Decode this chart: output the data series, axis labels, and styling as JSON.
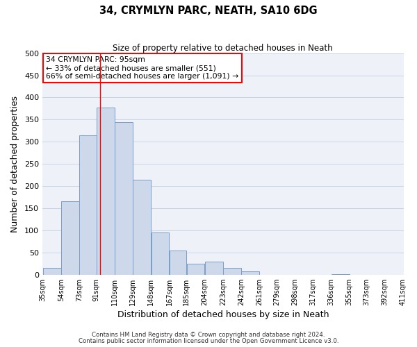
{
  "title": "34, CRYMLYN PARC, NEATH, SA10 6DG",
  "subtitle": "Size of property relative to detached houses in Neath",
  "xlabel": "Distribution of detached houses by size in Neath",
  "ylabel": "Number of detached properties",
  "bar_color": "#cdd9ea",
  "bar_edge_color": "#7a9ec8",
  "bar_edge_width": 0.7,
  "categories": [
    "35sqm",
    "54sqm",
    "73sqm",
    "91sqm",
    "110sqm",
    "129sqm",
    "148sqm",
    "167sqm",
    "185sqm",
    "204sqm",
    "223sqm",
    "242sqm",
    "261sqm",
    "279sqm",
    "298sqm",
    "317sqm",
    "336sqm",
    "355sqm",
    "373sqm",
    "392sqm",
    "411sqm"
  ],
  "bin_left_edges": [
    35,
    54,
    73,
    91,
    110,
    129,
    148,
    167,
    185,
    204,
    223,
    242,
    261,
    279,
    298,
    317,
    336,
    355,
    373,
    392
  ],
  "bin_widths": [
    19,
    19,
    18,
    19,
    19,
    19,
    19,
    18,
    19,
    19,
    19,
    19,
    18,
    19,
    19,
    19,
    19,
    18,
    19,
    19
  ],
  "values": [
    15,
    165,
    315,
    378,
    345,
    215,
    95,
    55,
    25,
    29,
    15,
    8,
    0,
    0,
    0,
    0,
    2,
    0,
    0,
    0
  ],
  "ylim": [
    0,
    500
  ],
  "yticks": [
    0,
    50,
    100,
    150,
    200,
    250,
    300,
    350,
    400,
    450,
    500
  ],
  "property_line_x": 95,
  "annotation_lines": [
    "34 CRYMLYN PARC: 95sqm",
    "← 33% of detached houses are smaller (551)",
    "66% of semi-detached houses are larger (1,091) →"
  ],
  "grid_color": "#c8d4e3",
  "background_color": "#eef2f8",
  "footer_line1": "Contains HM Land Registry data © Crown copyright and database right 2024.",
  "footer_line2": "Contains public sector information licensed under the Open Government Licence v3.0."
}
